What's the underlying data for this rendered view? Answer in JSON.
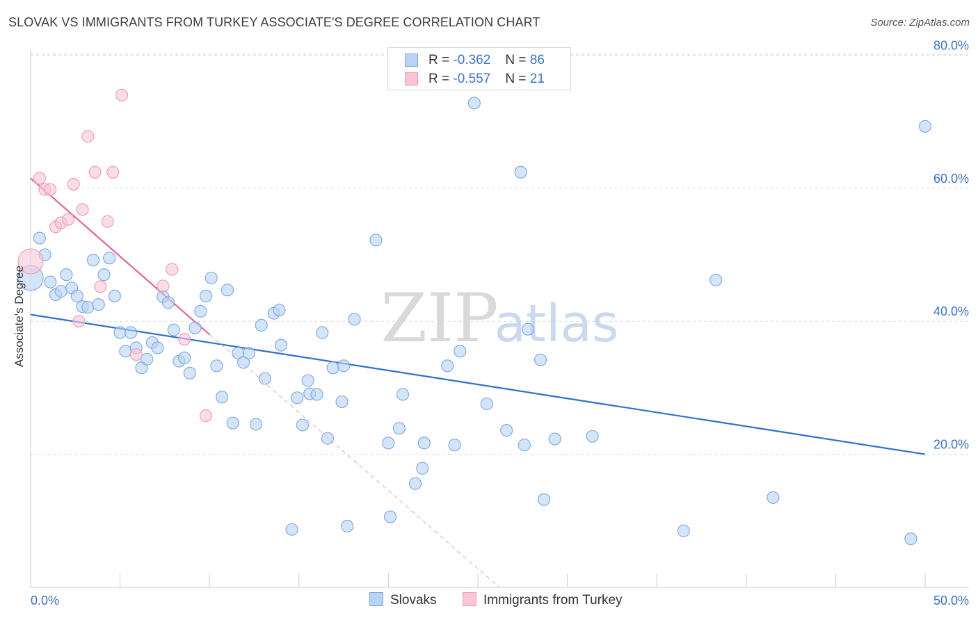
{
  "title": "SLOVAK VS IMMIGRANTS FROM TURKEY ASSOCIATE'S DEGREE CORRELATION CHART",
  "source": "Source: ZipAtlas.com",
  "watermark": {
    "zip": "ZIP",
    "atlas": "atlas"
  },
  "legend": {
    "rows": [
      {
        "r_label": "R =",
        "r_value": "-0.362",
        "n_label": "N =",
        "n_value": "86"
      },
      {
        "r_label": "R =",
        "r_value": "-0.557",
        "n_label": "N =",
        "n_value": "21"
      }
    ]
  },
  "bottom_legend": {
    "slovaks": "Slovaks",
    "turkey": "Immigrants from Turkey"
  },
  "colors": {
    "blue_fill": "#b9d3f5",
    "blue_stroke": "#7aa6e0",
    "blue_line": "#2f6fce",
    "pink_fill": "#f8c6d6",
    "pink_stroke": "#ec9ab5",
    "pink_line": "#e0678f",
    "axis_text": "#3a73c8"
  },
  "chart_data": {
    "type": "scatter",
    "title": "SLOVAK VS IMMIGRANTS FROM TURKEY ASSOCIATE'S DEGREE CORRELATION CHART",
    "xlabel": "",
    "ylabel": "Associate's Degree",
    "xlim": [
      0,
      50
    ],
    "ylim": [
      0,
      83
    ],
    "x_tick_labels": [
      {
        "value": 0,
        "label": "0.0%"
      },
      {
        "value": 50,
        "label": "50.0%"
      }
    ],
    "y_tick_labels": [
      {
        "value": 20,
        "label": "20.0%"
      },
      {
        "value": 40,
        "label": "40.0%"
      },
      {
        "value": 60,
        "label": "60.0%"
      },
      {
        "value": 80,
        "label": "80.0%"
      }
    ],
    "x_minor_ticks": [
      0,
      5,
      10,
      15,
      20,
      25,
      30,
      35,
      40,
      45,
      50
    ],
    "grid": true,
    "series": [
      {
        "name": "Slovaks",
        "r": -0.362,
        "n": 86,
        "trend": {
          "x": [
            0,
            50
          ],
          "y": [
            41.0,
            20.0
          ],
          "dashed_extension": false
        },
        "points": [
          {
            "x": 0.0,
            "y": 46.5,
            "big": true
          },
          {
            "x": 0.5,
            "y": 52.5
          },
          {
            "x": 0.8,
            "y": 50.0
          },
          {
            "x": 1.1,
            "y": 45.9
          },
          {
            "x": 1.4,
            "y": 44.0
          },
          {
            "x": 1.7,
            "y": 44.5
          },
          {
            "x": 2.0,
            "y": 47.0
          },
          {
            "x": 2.3,
            "y": 45.0
          },
          {
            "x": 2.6,
            "y": 43.8
          },
          {
            "x": 2.9,
            "y": 42.2
          },
          {
            "x": 3.2,
            "y": 42.1
          },
          {
            "x": 3.5,
            "y": 49.2
          },
          {
            "x": 3.8,
            "y": 42.5
          },
          {
            "x": 4.1,
            "y": 47.0
          },
          {
            "x": 4.4,
            "y": 49.5
          },
          {
            "x": 4.7,
            "y": 43.8
          },
          {
            "x": 5.0,
            "y": 38.3
          },
          {
            "x": 5.3,
            "y": 35.5
          },
          {
            "x": 5.6,
            "y": 38.3
          },
          {
            "x": 5.9,
            "y": 36.0
          },
          {
            "x": 6.2,
            "y": 33.0
          },
          {
            "x": 6.5,
            "y": 34.3
          },
          {
            "x": 6.8,
            "y": 36.8
          },
          {
            "x": 7.1,
            "y": 36.0
          },
          {
            "x": 7.4,
            "y": 43.7
          },
          {
            "x": 7.7,
            "y": 42.8
          },
          {
            "x": 8.0,
            "y": 38.7
          },
          {
            "x": 8.3,
            "y": 34.0
          },
          {
            "x": 8.6,
            "y": 34.5
          },
          {
            "x": 8.9,
            "y": 32.2
          },
          {
            "x": 9.2,
            "y": 39.0
          },
          {
            "x": 9.5,
            "y": 41.5
          },
          {
            "x": 9.8,
            "y": 43.8
          },
          {
            "x": 10.1,
            "y": 46.5
          },
          {
            "x": 10.4,
            "y": 33.3
          },
          {
            "x": 10.7,
            "y": 28.6
          },
          {
            "x": 11.0,
            "y": 44.7
          },
          {
            "x": 11.3,
            "y": 24.7
          },
          {
            "x": 11.6,
            "y": 35.2
          },
          {
            "x": 11.9,
            "y": 33.8
          },
          {
            "x": 12.2,
            "y": 35.2
          },
          {
            "x": 12.6,
            "y": 24.5
          },
          {
            "x": 12.9,
            "y": 39.4
          },
          {
            "x": 13.1,
            "y": 31.4
          },
          {
            "x": 13.6,
            "y": 41.2
          },
          {
            "x": 13.9,
            "y": 41.7
          },
          {
            "x": 14.0,
            "y": 36.4
          },
          {
            "x": 14.6,
            "y": 8.7
          },
          {
            "x": 14.9,
            "y": 28.5
          },
          {
            "x": 15.2,
            "y": 24.4
          },
          {
            "x": 15.5,
            "y": 31.1
          },
          {
            "x": 15.6,
            "y": 29.1
          },
          {
            "x": 16.0,
            "y": 29.0
          },
          {
            "x": 16.3,
            "y": 38.3
          },
          {
            "x": 16.6,
            "y": 22.4
          },
          {
            "x": 16.9,
            "y": 33.0
          },
          {
            "x": 17.5,
            "y": 33.3
          },
          {
            "x": 17.4,
            "y": 27.9
          },
          {
            "x": 17.7,
            "y": 9.2
          },
          {
            "x": 18.1,
            "y": 40.3
          },
          {
            "x": 19.3,
            "y": 52.2
          },
          {
            "x": 20.0,
            "y": 21.7
          },
          {
            "x": 20.1,
            "y": 10.6
          },
          {
            "x": 20.6,
            "y": 23.9
          },
          {
            "x": 20.8,
            "y": 29.0
          },
          {
            "x": 21.5,
            "y": 15.6
          },
          {
            "x": 21.9,
            "y": 17.9
          },
          {
            "x": 22.0,
            "y": 21.7
          },
          {
            "x": 23.3,
            "y": 33.3
          },
          {
            "x": 23.7,
            "y": 21.4
          },
          {
            "x": 24.0,
            "y": 35.5
          },
          {
            "x": 24.8,
            "y": 72.8
          },
          {
            "x": 25.5,
            "y": 27.6
          },
          {
            "x": 26.6,
            "y": 23.6
          },
          {
            "x": 27.6,
            "y": 21.4
          },
          {
            "x": 27.4,
            "y": 62.4
          },
          {
            "x": 27.8,
            "y": 38.8
          },
          {
            "x": 28.7,
            "y": 13.2
          },
          {
            "x": 28.5,
            "y": 34.2
          },
          {
            "x": 29.3,
            "y": 22.3
          },
          {
            "x": 31.4,
            "y": 22.7
          },
          {
            "x": 36.5,
            "y": 8.5
          },
          {
            "x": 38.3,
            "y": 46.2
          },
          {
            "x": 41.5,
            "y": 13.5
          },
          {
            "x": 49.2,
            "y": 7.3
          },
          {
            "x": 50.0,
            "y": 69.3
          }
        ]
      },
      {
        "name": "Immigrants from Turkey",
        "r": -0.557,
        "n": 21,
        "trend": {
          "x": [
            0,
            10
          ],
          "y": [
            61.5,
            38.0
          ],
          "dashed_extension": {
            "x": [
              10,
              26.2
            ],
            "y": [
              38.0,
              0
            ]
          }
        },
        "points": [
          {
            "x": 0.0,
            "y": 49.0,
            "big": true
          },
          {
            "x": 0.5,
            "y": 61.5
          },
          {
            "x": 0.8,
            "y": 59.8
          },
          {
            "x": 1.1,
            "y": 59.8
          },
          {
            "x": 1.4,
            "y": 54.2
          },
          {
            "x": 1.7,
            "y": 54.8
          },
          {
            "x": 2.1,
            "y": 55.3
          },
          {
            "x": 2.4,
            "y": 60.6
          },
          {
            "x": 2.7,
            "y": 40.0
          },
          {
            "x": 2.9,
            "y": 56.8
          },
          {
            "x": 3.2,
            "y": 67.8
          },
          {
            "x": 3.6,
            "y": 62.4
          },
          {
            "x": 3.9,
            "y": 45.2
          },
          {
            "x": 4.3,
            "y": 55.0
          },
          {
            "x": 4.6,
            "y": 62.4
          },
          {
            "x": 5.1,
            "y": 74.0
          },
          {
            "x": 5.9,
            "y": 35.0
          },
          {
            "x": 7.4,
            "y": 45.3
          },
          {
            "x": 7.9,
            "y": 47.8
          },
          {
            "x": 8.6,
            "y": 37.3
          },
          {
            "x": 9.8,
            "y": 25.8
          }
        ]
      }
    ]
  }
}
